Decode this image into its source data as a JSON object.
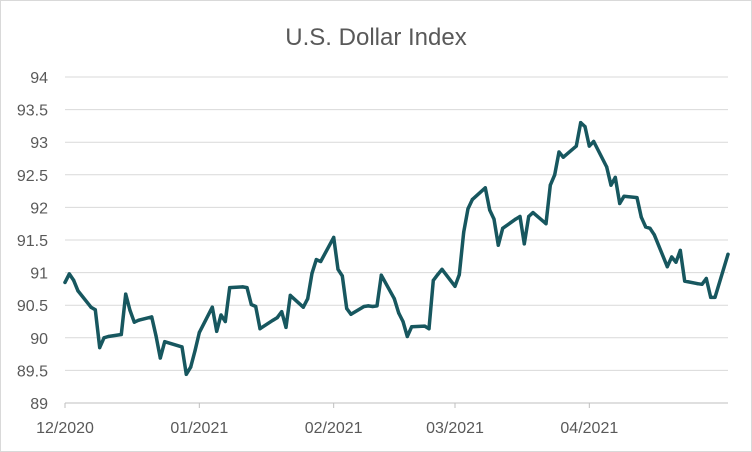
{
  "chart_data": {
    "type": "line",
    "title": "U.S. Dollar Index",
    "xlabel": "",
    "ylabel": "",
    "ylim": [
      89,
      94
    ],
    "yticks": [
      "89",
      "89.5",
      "90",
      "90.5",
      "91",
      "91.5",
      "92",
      "92.5",
      "93",
      "93.5",
      "94"
    ],
    "xticks": [
      "12/2020",
      "01/2021",
      "02/2021",
      "03/2021",
      "04/2021"
    ],
    "grid": true,
    "legend": "none",
    "colors": {
      "line": "#17575f",
      "grid": "#d9d9d9",
      "text": "#595959"
    },
    "series": [
      {
        "points": [
          [
            "2020-12-01",
            90.85
          ],
          [
            "2020-12-02",
            90.98
          ],
          [
            "2020-12-03",
            90.88
          ],
          [
            "2020-12-04",
            90.72
          ],
          [
            "2020-12-07",
            90.47
          ],
          [
            "2020-12-08",
            90.43
          ],
          [
            "2020-12-09",
            89.85
          ],
          [
            "2020-12-10",
            90.0
          ],
          [
            "2020-12-11",
            90.02
          ],
          [
            "2020-12-14",
            90.05
          ],
          [
            "2020-12-15",
            90.67
          ],
          [
            "2020-12-16",
            90.42
          ],
          [
            "2020-12-17",
            90.24
          ],
          [
            "2020-12-18",
            90.27
          ],
          [
            "2020-12-21",
            90.32
          ],
          [
            "2020-12-22",
            90.03
          ],
          [
            "2020-12-23",
            89.69
          ],
          [
            "2020-12-24",
            89.94
          ],
          [
            "2020-12-28",
            89.86
          ],
          [
            "2020-12-29",
            89.44
          ],
          [
            "2020-12-30",
            89.55
          ],
          [
            "2020-12-31",
            89.8
          ],
          [
            "2021-01-01",
            90.08
          ],
          [
            "2021-01-04",
            90.47
          ],
          [
            "2021-01-05",
            90.1
          ],
          [
            "2021-01-06",
            90.35
          ],
          [
            "2021-01-07",
            90.25
          ],
          [
            "2021-01-08",
            90.77
          ],
          [
            "2021-01-11",
            90.78
          ],
          [
            "2021-01-12",
            90.77
          ],
          [
            "2021-01-13",
            90.51
          ],
          [
            "2021-01-14",
            90.48
          ],
          [
            "2021-01-15",
            90.14
          ],
          [
            "2021-01-18",
            90.27
          ],
          [
            "2021-01-19",
            90.31
          ],
          [
            "2021-01-20",
            90.4
          ],
          [
            "2021-01-21",
            90.16
          ],
          [
            "2021-01-22",
            90.65
          ],
          [
            "2021-01-25",
            90.47
          ],
          [
            "2021-01-26",
            90.6
          ],
          [
            "2021-01-27",
            90.99
          ],
          [
            "2021-01-28",
            91.2
          ],
          [
            "2021-01-29",
            91.17
          ],
          [
            "2021-02-01",
            91.54
          ],
          [
            "2021-02-02",
            91.05
          ],
          [
            "2021-02-03",
            90.95
          ],
          [
            "2021-02-04",
            90.45
          ],
          [
            "2021-02-05",
            90.36
          ],
          [
            "2021-02-08",
            90.48
          ],
          [
            "2021-02-09",
            90.49
          ],
          [
            "2021-02-10",
            90.48
          ],
          [
            "2021-02-11",
            90.49
          ],
          [
            "2021-02-12",
            90.96
          ],
          [
            "2021-02-15",
            90.6
          ],
          [
            "2021-02-16",
            90.38
          ],
          [
            "2021-02-17",
            90.25
          ],
          [
            "2021-02-18",
            90.02
          ],
          [
            "2021-02-19",
            90.17
          ],
          [
            "2021-02-22",
            90.18
          ],
          [
            "2021-02-23",
            90.14
          ],
          [
            "2021-02-24",
            90.88
          ],
          [
            "2021-02-25",
            90.97
          ],
          [
            "2021-02-26",
            91.05
          ],
          [
            "2021-03-01",
            90.79
          ],
          [
            "2021-03-02",
            90.97
          ],
          [
            "2021-03-03",
            91.62
          ],
          [
            "2021-03-04",
            91.98
          ],
          [
            "2021-03-05",
            92.12
          ],
          [
            "2021-03-08",
            92.3
          ],
          [
            "2021-03-09",
            91.96
          ],
          [
            "2021-03-10",
            91.82
          ],
          [
            "2021-03-11",
            91.42
          ],
          [
            "2021-03-12",
            91.68
          ],
          [
            "2021-03-15",
            91.82
          ],
          [
            "2021-03-16",
            91.86
          ],
          [
            "2021-03-17",
            91.44
          ],
          [
            "2021-03-18",
            91.86
          ],
          [
            "2021-03-19",
            91.92
          ],
          [
            "2021-03-22",
            91.75
          ],
          [
            "2021-03-23",
            92.34
          ],
          [
            "2021-03-24",
            92.5
          ],
          [
            "2021-03-25",
            92.85
          ],
          [
            "2021-03-26",
            92.77
          ],
          [
            "2021-03-29",
            92.94
          ],
          [
            "2021-03-30",
            93.3
          ],
          [
            "2021-03-31",
            93.24
          ],
          [
            "2021-04-01",
            92.94
          ],
          [
            "2021-04-02",
            93.01
          ],
          [
            "2021-04-05",
            92.62
          ],
          [
            "2021-04-06",
            92.34
          ],
          [
            "2021-04-07",
            92.46
          ],
          [
            "2021-04-08",
            92.06
          ],
          [
            "2021-04-09",
            92.17
          ],
          [
            "2021-04-12",
            92.15
          ],
          [
            "2021-04-13",
            91.85
          ],
          [
            "2021-04-14",
            91.7
          ],
          [
            "2021-04-15",
            91.68
          ],
          [
            "2021-04-16",
            91.58
          ],
          [
            "2021-04-19",
            91.09
          ],
          [
            "2021-04-20",
            91.24
          ],
          [
            "2021-04-21",
            91.16
          ],
          [
            "2021-04-22",
            91.34
          ],
          [
            "2021-04-23",
            90.87
          ],
          [
            "2021-04-26",
            90.83
          ],
          [
            "2021-04-27",
            90.82
          ],
          [
            "2021-04-28",
            90.91
          ],
          [
            "2021-04-29",
            90.62
          ],
          [
            "2021-04-30",
            90.62
          ],
          [
            "2021-05-03",
            91.28
          ]
        ]
      }
    ]
  }
}
